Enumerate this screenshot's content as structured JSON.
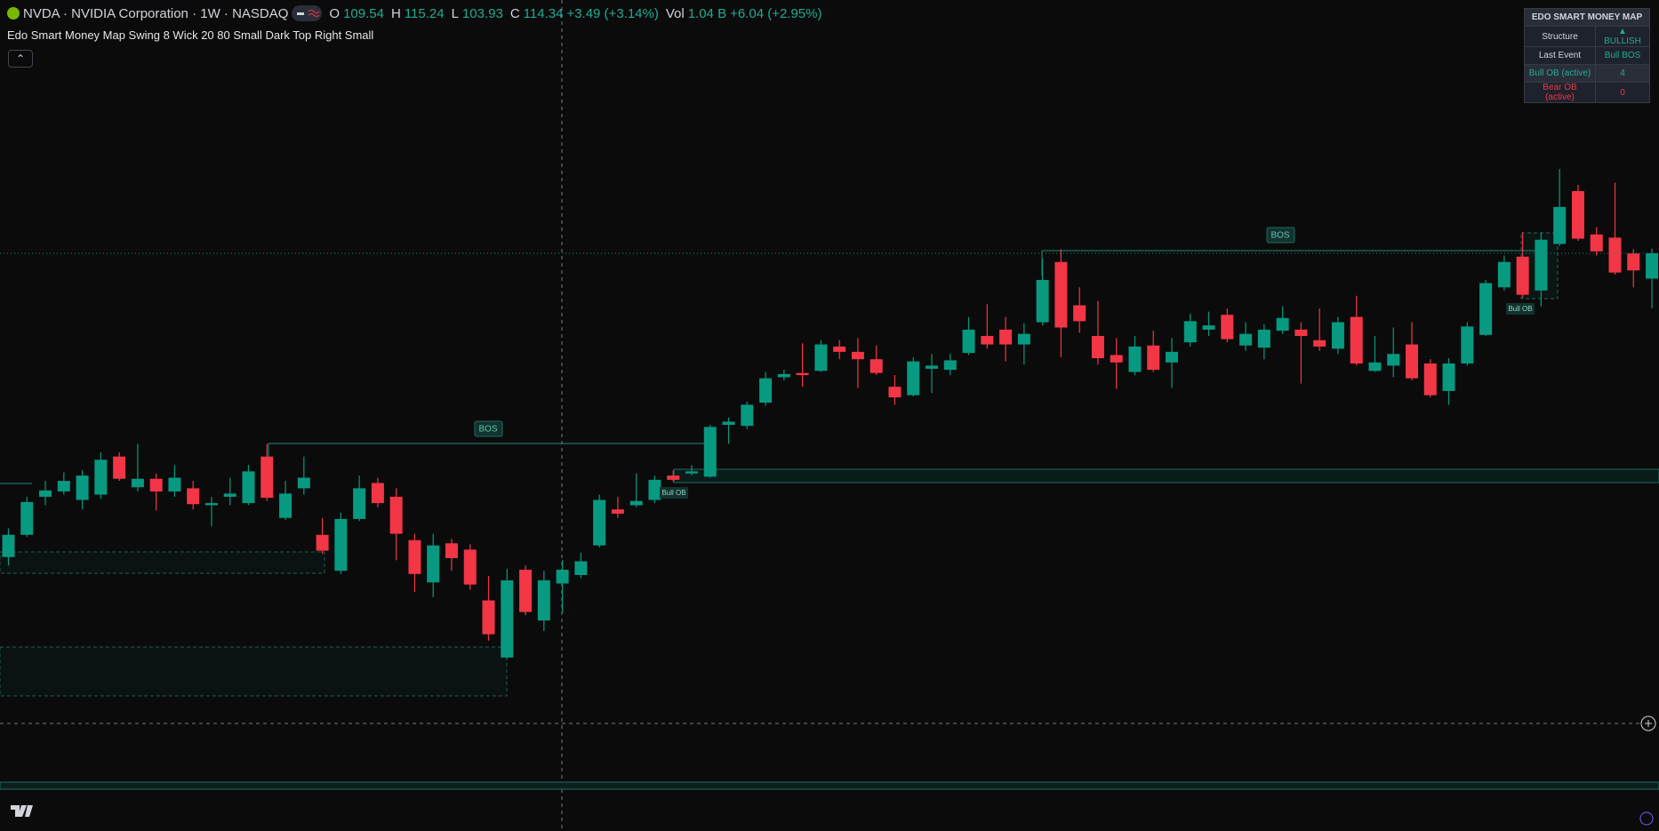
{
  "header": {
    "symbol": "NVDA · NVIDIA Corporation · 1W · NASDAQ",
    "ohlc_labels": [
      "O",
      "H",
      "L",
      "C"
    ],
    "change": "+3.49 (+3.14%)",
    "volume_label": "Vol",
    "volume": "1.04 B",
    "volume_change": "+6.04 (+2.95%)",
    "indicator": "Edo Smart Money Map Swing 8 Wick 20 80 Small Dark Top Right Small"
  },
  "chart_data": {
    "type": "candlestick",
    "colors": {
      "up": "#089981",
      "down": "#f23645"
    },
    "candles": [
      [
        56.9,
        62.3,
        55.3,
        61.1
      ],
      [
        61.1,
        68.3,
        60.7,
        67.3
      ],
      [
        68.3,
        71.3,
        66.7,
        69.5
      ],
      [
        69.3,
        72.9,
        68.7,
        71.3
      ],
      [
        67.7,
        73.3,
        65.9,
        72.3
      ],
      [
        68.7,
        76.7,
        67.9,
        75.3
      ],
      [
        75.9,
        76.7,
        71.3,
        71.7
      ],
      [
        70.1,
        78.3,
        69.3,
        71.7
      ],
      [
        71.7,
        72.7,
        65.7,
        69.3
      ],
      [
        69.3,
        74.3,
        68.3,
        71.9
      ],
      [
        69.9,
        71.3,
        65.9,
        66.9
      ],
      [
        66.7,
        68.3,
        62.7,
        67.1
      ],
      [
        68.3,
        71.9,
        66.7,
        68.9
      ],
      [
        67.1,
        74.3,
        66.7,
        73.1
      ],
      [
        75.9,
        78.3,
        67.5,
        68.1
      ],
      [
        64.3,
        71.3,
        63.9,
        68.9
      ],
      [
        69.9,
        75.9,
        68.7,
        71.9
      ],
      [
        61.1,
        64.3,
        57.5,
        58.1
      ],
      [
        54.3,
        65.3,
        53.7,
        64.1
      ],
      [
        64.1,
        72.3,
        63.7,
        69.9
      ],
      [
        70.9,
        71.9,
        66.3,
        67.1
      ],
      [
        68.3,
        69.9,
        56.3,
        61.3
      ],
      [
        60.1,
        61.3,
        50.3,
        53.7
      ],
      [
        52.1,
        61.3,
        49.3,
        59.1
      ],
      [
        59.5,
        60.3,
        54.3,
        56.7
      ],
      [
        58.3,
        59.3,
        50.7,
        51.7
      ],
      [
        48.7,
        53.3,
        41.1,
        42.3
      ],
      [
        37.9,
        54.7,
        37.7,
        52.5
      ],
      [
        54.5,
        55.3,
        45.9,
        46.5
      ],
      [
        44.9,
        54.3,
        42.9,
        52.5
      ],
      [
        51.9,
        56.3,
        46.3,
        54.5
      ],
      [
        53.5,
        57.7,
        52.9,
        56.1
      ],
      [
        59.1,
        68.7,
        58.7,
        67.7
      ],
      [
        65.9,
        68.3,
        64.3,
        65.1
      ],
      [
        66.7,
        72.7,
        66.3,
        67.5
      ],
      [
        67.7,
        72.3,
        67.1,
        71.5
      ],
      [
        72.3,
        73.3,
        71.1,
        71.5
      ],
      [
        72.7,
        74.3,
        72.3,
        73.1
      ],
      [
        72.1,
        81.9,
        71.9,
        81.5
      ],
      [
        81.9,
        83.3,
        78.3,
        82.5
      ],
      [
        81.7,
        86.3,
        81.1,
        85.7
      ],
      [
        86.1,
        91.9,
        85.5,
        90.7
      ],
      [
        90.9,
        92.3,
        90.3,
        91.5
      ],
      [
        91.7,
        97.3,
        89.1,
        91.3
      ],
      [
        92.1,
        97.9,
        91.9,
        97.1
      ],
      [
        96.7,
        97.9,
        94.3,
        95.7
      ],
      [
        95.7,
        98.3,
        88.9,
        94.3
      ],
      [
        94.3,
        96.9,
        91.3,
        91.7
      ],
      [
        89.1,
        91.3,
        85.7,
        87.1
      ],
      [
        87.5,
        94.7,
        87.3,
        93.9
      ],
      [
        92.5,
        95.3,
        87.9,
        93.1
      ],
      [
        92.3,
        95.3,
        91.3,
        94.1
      ],
      [
        95.5,
        102.3,
        95.1,
        99.9
      ],
      [
        98.7,
        104.7,
        96.3,
        97.1
      ],
      [
        99.9,
        102.3,
        93.9,
        97.1
      ],
      [
        97.1,
        101.1,
        93.3,
        99.1
      ],
      [
        101.3,
        113.3,
        100.7,
        109.3
      ],
      [
        112.7,
        115.1,
        94.7,
        100.3
      ],
      [
        104.5,
        107.9,
        99.3,
        101.5
      ],
      [
        98.7,
        105.3,
        93.3,
        94.5
      ],
      [
        95.1,
        98.3,
        88.7,
        93.7
      ],
      [
        91.9,
        98.7,
        91.3,
        96.7
      ],
      [
        96.9,
        99.7,
        91.9,
        92.3
      ],
      [
        93.7,
        98.3,
        88.9,
        95.7
      ],
      [
        97.5,
        102.9,
        96.7,
        101.5
      ],
      [
        99.9,
        103.3,
        98.7,
        100.7
      ],
      [
        102.7,
        103.9,
        97.5,
        98.1
      ],
      [
        96.9,
        101.3,
        95.9,
        99.1
      ],
      [
        96.5,
        100.9,
        94.3,
        99.9
      ],
      [
        99.7,
        104.3,
        99.1,
        102.1
      ],
      [
        99.9,
        101.3,
        89.7,
        98.7
      ],
      [
        97.9,
        103.9,
        95.9,
        96.7
      ],
      [
        96.3,
        102.3,
        95.3,
        101.3
      ],
      [
        102.3,
        106.3,
        93.1,
        93.5
      ],
      [
        92.1,
        98.7,
        91.9,
        93.7
      ],
      [
        93.1,
        100.3,
        90.9,
        95.3
      ],
      [
        97.1,
        101.3,
        90.3,
        90.7
      ],
      [
        93.5,
        94.3,
        87.1,
        87.5
      ],
      [
        88.3,
        94.5,
        85.7,
        93.5
      ],
      [
        93.5,
        101.3,
        93.1,
        100.5
      ],
      [
        98.9,
        109.3,
        98.7,
        108.7
      ],
      [
        107.9,
        113.9,
        107.3,
        112.7
      ],
      [
        113.7,
        118.3,
        105.9,
        106.5
      ],
      [
        107.3,
        118.3,
        104.3,
        116.9
      ],
      [
        116.1,
        130.3,
        115.7,
        123.1
      ],
      [
        126.1,
        127.3,
        116.7,
        117.1
      ],
      [
        117.9,
        119.3,
        113.9,
        114.7
      ],
      [
        117.3,
        127.7,
        110.3,
        110.7
      ],
      [
        114.3,
        115.1,
        107.9,
        111.1
      ],
      [
        109.54,
        115.24,
        103.93,
        114.34
      ]
    ]
  },
  "annotations": {
    "bos": [
      "BOS",
      "BOS"
    ],
    "bull_ob": [
      "Bull OB",
      "Bull OB"
    ]
  },
  "table": {
    "title": "EDO SMART MONEY MAP",
    "rows": [
      [
        "Structure",
        "▲ BULLISH"
      ],
      [
        "Last Event",
        "Bull BOS"
      ],
      [
        "Bull OB (active)",
        "4"
      ],
      [
        "Bear OB (active)",
        "0"
      ]
    ]
  }
}
